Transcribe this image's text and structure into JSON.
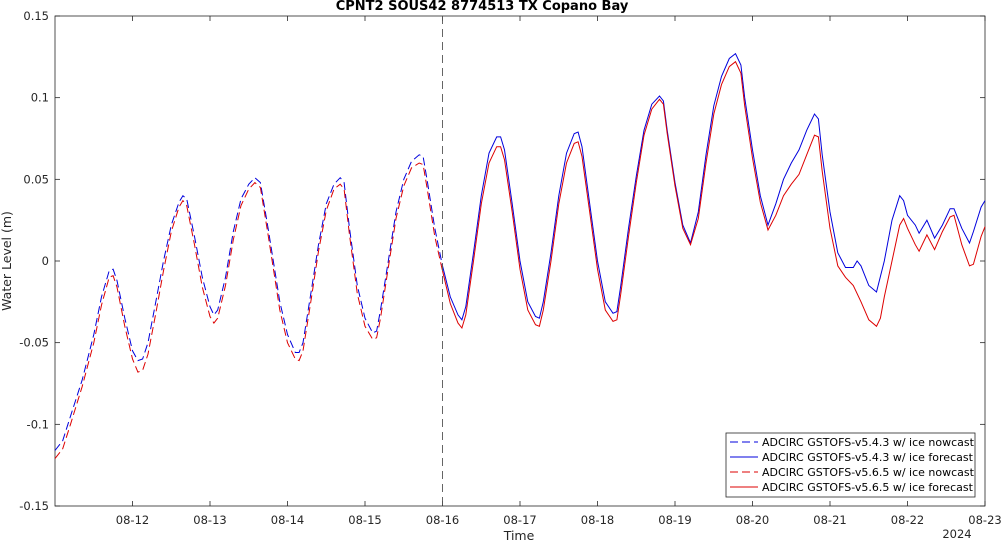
{
  "chart_data": {
    "type": "line",
    "title": "CPNT2 SOUS42 8774513 TX Copano Bay",
    "xlabel": "Time",
    "ylabel": "Water Level (m)",
    "x_year_label": "2024",
    "xlim": [
      11.0,
      23.0
    ],
    "ylim": [
      -0.15,
      0.15
    ],
    "x_ticks": [
      {
        "value": 12,
        "label": "08-12"
      },
      {
        "value": 13,
        "label": "08-13"
      },
      {
        "value": 14,
        "label": "08-14"
      },
      {
        "value": 15,
        "label": "08-15"
      },
      {
        "value": 16,
        "label": "08-16"
      },
      {
        "value": 17,
        "label": "08-17"
      },
      {
        "value": 18,
        "label": "08-18"
      },
      {
        "value": 19,
        "label": "08-19"
      },
      {
        "value": 20,
        "label": "08-20"
      },
      {
        "value": 21,
        "label": "08-21"
      },
      {
        "value": 22,
        "label": "08-22"
      },
      {
        "value": 23,
        "label": "08-23"
      }
    ],
    "y_ticks": [
      {
        "value": 0.15,
        "label": "0.15"
      },
      {
        "value": 0.1,
        "label": "0.1"
      },
      {
        "value": 0.05,
        "label": "0.05"
      },
      {
        "value": 0,
        "label": "0"
      },
      {
        "value": -0.05,
        "label": "-0.05"
      },
      {
        "value": -0.1,
        "label": "-0.1"
      },
      {
        "value": -0.15,
        "label": "-0.15"
      }
    ],
    "nowcast_forecast_divider_x": 16.0,
    "grid": false,
    "legend_position": "bottom-right",
    "series": [
      {
        "name": "ADCIRC GSTOFS-v5.4.3 w/ ice nowcast",
        "color": "#0000dd",
        "dash": "dashed",
        "points": [
          [
            11.0,
            -0.116
          ],
          [
            11.1,
            -0.11
          ],
          [
            11.2,
            -0.095
          ],
          [
            11.35,
            -0.073
          ],
          [
            11.5,
            -0.045
          ],
          [
            11.6,
            -0.022
          ],
          [
            11.7,
            -0.006
          ],
          [
            11.75,
            -0.005
          ],
          [
            11.8,
            -0.012
          ],
          [
            11.9,
            -0.035
          ],
          [
            12.0,
            -0.055
          ],
          [
            12.07,
            -0.061
          ],
          [
            12.13,
            -0.06
          ],
          [
            12.2,
            -0.05
          ],
          [
            12.3,
            -0.025
          ],
          [
            12.4,
            0.0
          ],
          [
            12.5,
            0.022
          ],
          [
            12.6,
            0.036
          ],
          [
            12.65,
            0.04
          ],
          [
            12.7,
            0.038
          ],
          [
            12.8,
            0.015
          ],
          [
            12.9,
            -0.01
          ],
          [
            13.0,
            -0.028
          ],
          [
            13.05,
            -0.033
          ],
          [
            13.1,
            -0.03
          ],
          [
            13.2,
            -0.01
          ],
          [
            13.3,
            0.018
          ],
          [
            13.4,
            0.038
          ],
          [
            13.5,
            0.047
          ],
          [
            13.58,
            0.051
          ],
          [
            13.65,
            0.048
          ],
          [
            13.75,
            0.02
          ],
          [
            13.9,
            -0.025
          ],
          [
            14.0,
            -0.045
          ],
          [
            14.1,
            -0.056
          ],
          [
            14.15,
            -0.056
          ],
          [
            14.2,
            -0.05
          ],
          [
            14.3,
            -0.02
          ],
          [
            14.4,
            0.01
          ],
          [
            14.5,
            0.035
          ],
          [
            14.6,
            0.047
          ],
          [
            14.68,
            0.051
          ],
          [
            14.73,
            0.048
          ],
          [
            14.8,
            0.02
          ],
          [
            14.9,
            -0.015
          ],
          [
            15.0,
            -0.035
          ],
          [
            15.1,
            -0.044
          ],
          [
            15.15,
            -0.043
          ],
          [
            15.2,
            -0.03
          ],
          [
            15.3,
            0.0
          ],
          [
            15.4,
            0.03
          ],
          [
            15.5,
            0.05
          ],
          [
            15.6,
            0.061
          ],
          [
            15.7,
            0.065
          ],
          [
            15.75,
            0.064
          ],
          [
            15.8,
            0.05
          ],
          [
            15.9,
            0.02
          ],
          [
            16.0,
            -0.003
          ]
        ]
      },
      {
        "name": "ADCIRC GSTOFS-v5.4.3 w/ ice forecast",
        "color": "#0000dd",
        "dash": "solid",
        "points": [
          [
            16.0,
            -0.003
          ],
          [
            16.1,
            -0.022
          ],
          [
            16.2,
            -0.033
          ],
          [
            16.25,
            -0.036
          ],
          [
            16.3,
            -0.028
          ],
          [
            16.4,
            0.005
          ],
          [
            16.5,
            0.04
          ],
          [
            16.6,
            0.066
          ],
          [
            16.7,
            0.076
          ],
          [
            16.75,
            0.076
          ],
          [
            16.8,
            0.068
          ],
          [
            16.9,
            0.035
          ],
          [
            17.0,
            0.0
          ],
          [
            17.1,
            -0.025
          ],
          [
            17.2,
            -0.034
          ],
          [
            17.25,
            -0.035
          ],
          [
            17.3,
            -0.025
          ],
          [
            17.4,
            0.005
          ],
          [
            17.5,
            0.04
          ],
          [
            17.6,
            0.066
          ],
          [
            17.7,
            0.078
          ],
          [
            17.75,
            0.079
          ],
          [
            17.8,
            0.07
          ],
          [
            17.9,
            0.035
          ],
          [
            18.0,
            0.0
          ],
          [
            18.1,
            -0.025
          ],
          [
            18.2,
            -0.032
          ],
          [
            18.25,
            -0.031
          ],
          [
            18.3,
            -0.015
          ],
          [
            18.4,
            0.02
          ],
          [
            18.5,
            0.052
          ],
          [
            18.6,
            0.08
          ],
          [
            18.7,
            0.096
          ],
          [
            18.8,
            0.101
          ],
          [
            18.85,
            0.098
          ],
          [
            18.9,
            0.08
          ],
          [
            19.0,
            0.048
          ],
          [
            19.1,
            0.022
          ],
          [
            19.2,
            0.011
          ],
          [
            19.3,
            0.03
          ],
          [
            19.4,
            0.065
          ],
          [
            19.5,
            0.095
          ],
          [
            19.6,
            0.113
          ],
          [
            19.7,
            0.124
          ],
          [
            19.78,
            0.127
          ],
          [
            19.85,
            0.12
          ],
          [
            19.9,
            0.1
          ],
          [
            20.0,
            0.068
          ],
          [
            20.1,
            0.04
          ],
          [
            20.2,
            0.022
          ],
          [
            20.3,
            0.035
          ],
          [
            20.4,
            0.05
          ],
          [
            20.5,
            0.06
          ],
          [
            20.6,
            0.068
          ],
          [
            20.7,
            0.08
          ],
          [
            20.8,
            0.09
          ],
          [
            20.85,
            0.087
          ],
          [
            20.9,
            0.065
          ],
          [
            21.0,
            0.03
          ],
          [
            21.1,
            0.005
          ],
          [
            21.2,
            -0.004
          ],
          [
            21.3,
            -0.004
          ],
          [
            21.35,
            0.0
          ],
          [
            21.4,
            -0.003
          ],
          [
            21.5,
            -0.015
          ],
          [
            21.6,
            -0.019
          ],
          [
            21.7,
            0.0
          ],
          [
            21.8,
            0.025
          ],
          [
            21.9,
            0.04
          ],
          [
            21.95,
            0.037
          ],
          [
            22.0,
            0.028
          ],
          [
            22.1,
            0.022
          ],
          [
            22.15,
            0.017
          ],
          [
            22.25,
            0.025
          ],
          [
            22.35,
            0.014
          ],
          [
            22.45,
            0.022
          ],
          [
            22.55,
            0.032
          ],
          [
            22.6,
            0.032
          ],
          [
            22.7,
            0.02
          ],
          [
            22.8,
            0.011
          ],
          [
            22.85,
            0.018
          ],
          [
            22.95,
            0.033
          ],
          [
            23.0,
            0.037
          ]
        ]
      },
      {
        "name": "ADCIRC GSTOFS-v5.6.5 w/ ice nowcast",
        "color": "#dd0000",
        "dash": "dashed",
        "points": [
          [
            11.0,
            -0.121
          ],
          [
            11.1,
            -0.115
          ],
          [
            11.2,
            -0.1
          ],
          [
            11.35,
            -0.077
          ],
          [
            11.5,
            -0.05
          ],
          [
            11.6,
            -0.027
          ],
          [
            11.7,
            -0.01
          ],
          [
            11.75,
            -0.009
          ],
          [
            11.8,
            -0.016
          ],
          [
            11.9,
            -0.04
          ],
          [
            12.0,
            -0.06
          ],
          [
            12.07,
            -0.068
          ],
          [
            12.13,
            -0.067
          ],
          [
            12.2,
            -0.057
          ],
          [
            12.3,
            -0.032
          ],
          [
            12.4,
            -0.006
          ],
          [
            12.5,
            0.018
          ],
          [
            12.6,
            0.033
          ],
          [
            12.65,
            0.037
          ],
          [
            12.7,
            0.034
          ],
          [
            12.8,
            0.01
          ],
          [
            12.9,
            -0.016
          ],
          [
            13.0,
            -0.034
          ],
          [
            13.05,
            -0.038
          ],
          [
            13.1,
            -0.035
          ],
          [
            13.2,
            -0.015
          ],
          [
            13.3,
            0.013
          ],
          [
            13.4,
            0.034
          ],
          [
            13.5,
            0.044
          ],
          [
            13.58,
            0.048
          ],
          [
            13.65,
            0.045
          ],
          [
            13.75,
            0.016
          ],
          [
            13.9,
            -0.03
          ],
          [
            14.0,
            -0.05
          ],
          [
            14.1,
            -0.06
          ],
          [
            14.15,
            -0.061
          ],
          [
            14.2,
            -0.055
          ],
          [
            14.3,
            -0.025
          ],
          [
            14.4,
            0.006
          ],
          [
            14.5,
            0.031
          ],
          [
            14.6,
            0.044
          ],
          [
            14.68,
            0.047
          ],
          [
            14.73,
            0.044
          ],
          [
            14.8,
            0.016
          ],
          [
            14.9,
            -0.02
          ],
          [
            15.0,
            -0.04
          ],
          [
            15.1,
            -0.048
          ],
          [
            15.15,
            -0.047
          ],
          [
            15.2,
            -0.035
          ],
          [
            15.3,
            -0.004
          ],
          [
            15.4,
            0.026
          ],
          [
            15.5,
            0.046
          ],
          [
            15.6,
            0.057
          ],
          [
            15.7,
            0.06
          ],
          [
            15.75,
            0.059
          ],
          [
            15.8,
            0.045
          ],
          [
            15.9,
            0.015
          ],
          [
            16.0,
            -0.006
          ]
        ]
      },
      {
        "name": "ADCIRC GSTOFS-v5.6.5 w/ ice forecast",
        "color": "#dd0000",
        "dash": "solid",
        "points": [
          [
            16.0,
            -0.006
          ],
          [
            16.1,
            -0.026
          ],
          [
            16.2,
            -0.038
          ],
          [
            16.25,
            -0.041
          ],
          [
            16.3,
            -0.033
          ],
          [
            16.4,
            0.0
          ],
          [
            16.5,
            0.035
          ],
          [
            16.6,
            0.06
          ],
          [
            16.7,
            0.07
          ],
          [
            16.75,
            0.07
          ],
          [
            16.8,
            0.062
          ],
          [
            16.9,
            0.03
          ],
          [
            17.0,
            -0.005
          ],
          [
            17.1,
            -0.03
          ],
          [
            17.2,
            -0.039
          ],
          [
            17.25,
            -0.04
          ],
          [
            17.3,
            -0.03
          ],
          [
            17.4,
            0.0
          ],
          [
            17.5,
            0.035
          ],
          [
            17.6,
            0.06
          ],
          [
            17.7,
            0.072
          ],
          [
            17.75,
            0.073
          ],
          [
            17.8,
            0.064
          ],
          [
            17.9,
            0.03
          ],
          [
            18.0,
            -0.005
          ],
          [
            18.1,
            -0.03
          ],
          [
            18.2,
            -0.037
          ],
          [
            18.25,
            -0.036
          ],
          [
            18.3,
            -0.02
          ],
          [
            18.4,
            0.015
          ],
          [
            18.5,
            0.048
          ],
          [
            18.6,
            0.077
          ],
          [
            18.7,
            0.093
          ],
          [
            18.8,
            0.099
          ],
          [
            18.85,
            0.096
          ],
          [
            18.9,
            0.078
          ],
          [
            19.0,
            0.046
          ],
          [
            19.1,
            0.02
          ],
          [
            19.2,
            0.01
          ],
          [
            19.3,
            0.026
          ],
          [
            19.4,
            0.06
          ],
          [
            19.5,
            0.09
          ],
          [
            19.6,
            0.108
          ],
          [
            19.7,
            0.119
          ],
          [
            19.78,
            0.122
          ],
          [
            19.85,
            0.115
          ],
          [
            19.9,
            0.095
          ],
          [
            20.0,
            0.063
          ],
          [
            20.1,
            0.036
          ],
          [
            20.2,
            0.019
          ],
          [
            20.3,
            0.028
          ],
          [
            20.4,
            0.04
          ],
          [
            20.5,
            0.047
          ],
          [
            20.6,
            0.053
          ],
          [
            20.7,
            0.065
          ],
          [
            20.8,
            0.077
          ],
          [
            20.85,
            0.076
          ],
          [
            20.9,
            0.055
          ],
          [
            21.0,
            0.02
          ],
          [
            21.1,
            -0.003
          ],
          [
            21.2,
            -0.01
          ],
          [
            21.3,
            -0.015
          ],
          [
            21.4,
            -0.025
          ],
          [
            21.5,
            -0.036
          ],
          [
            21.6,
            -0.04
          ],
          [
            21.65,
            -0.035
          ],
          [
            21.7,
            -0.022
          ],
          [
            21.8,
            0.0
          ],
          [
            21.9,
            0.022
          ],
          [
            21.95,
            0.026
          ],
          [
            22.0,
            0.02
          ],
          [
            22.1,
            0.01
          ],
          [
            22.15,
            0.006
          ],
          [
            22.25,
            0.016
          ],
          [
            22.35,
            0.007
          ],
          [
            22.45,
            0.018
          ],
          [
            22.55,
            0.027
          ],
          [
            22.6,
            0.028
          ],
          [
            22.7,
            0.01
          ],
          [
            22.8,
            -0.003
          ],
          [
            22.85,
            -0.002
          ],
          [
            22.95,
            0.015
          ],
          [
            23.0,
            0.021
          ]
        ]
      }
    ]
  }
}
